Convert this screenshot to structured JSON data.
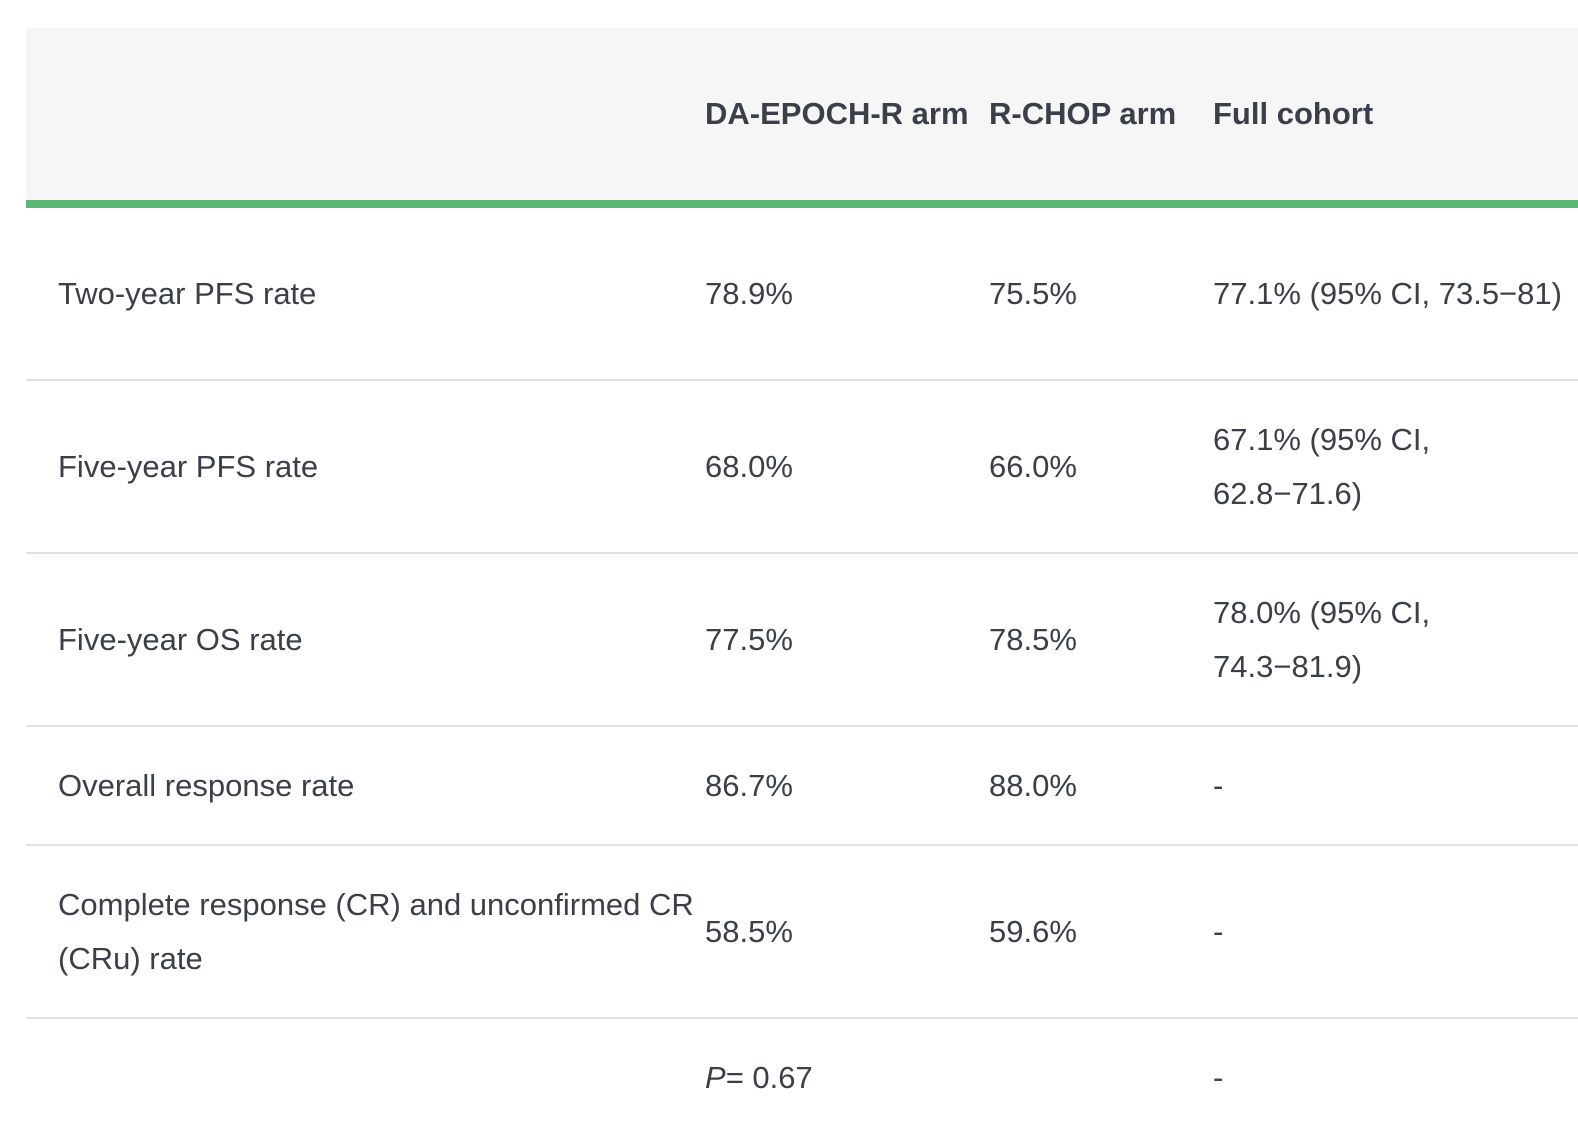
{
  "table": {
    "headers": [
      "",
      "DA-EPOCH-R arm",
      "R-CHOP arm",
      "Full cohort"
    ],
    "rows": [
      {
        "label": "Two-year PFS rate",
        "da_epoch_r": "78.9%",
        "r_chop": "75.5%",
        "full_cohort": "77.1% (95% CI, 73.5−81)"
      },
      {
        "label": "Five-year PFS rate",
        "da_epoch_r": "68.0%",
        "r_chop": "66.0%",
        "full_cohort": "67.1% (95% CI, 62.8−71.6)"
      },
      {
        "label": "Five-year OS rate",
        "da_epoch_r": "77.5%",
        "r_chop": "78.5%",
        "full_cohort": "78.0% (95% CI, 74.3−81.9)"
      },
      {
        "label": "Overall response rate",
        "da_epoch_r": "86.7%",
        "r_chop": "88.0%",
        "full_cohort": "-"
      },
      {
        "label": "Complete response (CR) and unconfirmed CR (CRu) rate",
        "da_epoch_r": "58.5%",
        "r_chop": "59.6%",
        "full_cohort": "-"
      }
    ],
    "pvalue_row": {
      "label": "",
      "p_symbol": "P",
      "p_value": "= 0.67",
      "r_chop": "",
      "full_cohort": "-"
    }
  },
  "colors": {
    "header_bg": "#f6f6f6",
    "accent_rule": "#5db878",
    "row_divider": "#e1e1e1",
    "text": "#3b3f4a"
  }
}
